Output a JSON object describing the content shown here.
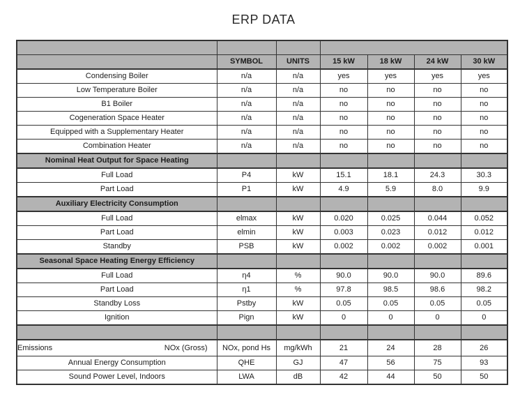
{
  "title": "ERP DATA",
  "colors": {
    "header_bg": "#b3b3b3",
    "border": "#333333",
    "background": "#ffffff"
  },
  "table": {
    "header": {
      "symbol": "SYMBOL",
      "units": "UNITS",
      "models": [
        "15 kW",
        "18 kW",
        "24 kW",
        "30 kW"
      ]
    },
    "rows": [
      {
        "type": "data",
        "label": "Condensing Boiler",
        "symbol": "n/a",
        "units": "n/a",
        "values": [
          "yes",
          "yes",
          "yes",
          "yes"
        ]
      },
      {
        "type": "data",
        "label": "Low Temperature Boiler",
        "symbol": "n/a",
        "units": "n/a",
        "values": [
          "no",
          "no",
          "no",
          "no"
        ]
      },
      {
        "type": "data",
        "label": "B1 Boiler",
        "symbol": "n/a",
        "units": "n/a",
        "values": [
          "no",
          "no",
          "no",
          "no"
        ]
      },
      {
        "type": "data",
        "label": "Cogeneration Space Heater",
        "symbol": "n/a",
        "units": "n/a",
        "values": [
          "no",
          "no",
          "no",
          "no"
        ]
      },
      {
        "type": "data",
        "label": "Equipped with a Supplementary Heater",
        "symbol": "n/a",
        "units": "n/a",
        "values": [
          "no",
          "no",
          "no",
          "no"
        ]
      },
      {
        "type": "data",
        "label": "Combination Heater",
        "symbol": "n/a",
        "units": "n/a",
        "values": [
          "no",
          "no",
          "no",
          "no"
        ]
      },
      {
        "type": "section",
        "label": "Nominal Heat Output for Space Heating"
      },
      {
        "type": "data",
        "label": "Full Load",
        "symbol": "P4",
        "units": "kW",
        "values": [
          "15.1",
          "18.1",
          "24.3",
          "30.3"
        ]
      },
      {
        "type": "data",
        "label": "Part Load",
        "symbol": "P1",
        "units": "kW",
        "values": [
          "4.9",
          "5.9",
          "8.0",
          "9.9"
        ]
      },
      {
        "type": "section",
        "label": "Auxiliary Electricity Consumption"
      },
      {
        "type": "data",
        "label": "Full Load",
        "symbol": "elmax",
        "units": "kW",
        "values": [
          "0.020",
          "0.025",
          "0.044",
          "0.052"
        ]
      },
      {
        "type": "data",
        "label": "Part Load",
        "symbol": "elmin",
        "units": "kW",
        "values": [
          "0.003",
          "0.023",
          "0.012",
          "0.012"
        ]
      },
      {
        "type": "data",
        "label": "Standby",
        "symbol": "PSB",
        "units": "kW",
        "values": [
          "0.002",
          "0.002",
          "0.002",
          "0.001"
        ]
      },
      {
        "type": "section",
        "label": "Seasonal Space Heating Energy Efficiency"
      },
      {
        "type": "data",
        "label": "Full Load",
        "symbol": "η4",
        "units": "%",
        "values": [
          "90.0",
          "90.0",
          "90.0",
          "89.6"
        ]
      },
      {
        "type": "data",
        "label": "Part Load",
        "symbol": "η1",
        "units": "%",
        "values": [
          "97.8",
          "98.5",
          "98.6",
          "98.2"
        ]
      },
      {
        "type": "data",
        "label": "Standby Loss",
        "symbol": "Pstby",
        "units": "kW",
        "values": [
          "0.05",
          "0.05",
          "0.05",
          "0.05"
        ]
      },
      {
        "type": "data",
        "label": "Ignition",
        "symbol": "Pign",
        "units": "kW",
        "values": [
          "0",
          "0",
          "0",
          "0"
        ]
      },
      {
        "type": "empty"
      },
      {
        "type": "data",
        "label": "Emissions",
        "label_right": "NOx (Gross)",
        "symbol": "NOx, pond Hs",
        "units": "mg/kWh",
        "values": [
          "21",
          "24",
          "28",
          "26"
        ],
        "tall": true
      },
      {
        "type": "data",
        "label": "Annual Energy Consumption",
        "symbol": "QHE",
        "units": "GJ",
        "values": [
          "47",
          "56",
          "75",
          "93"
        ]
      },
      {
        "type": "data",
        "label": "Sound Power Level, Indoors",
        "symbol": "LWA",
        "units": "dB",
        "values": [
          "42",
          "44",
          "50",
          "50"
        ]
      }
    ]
  }
}
